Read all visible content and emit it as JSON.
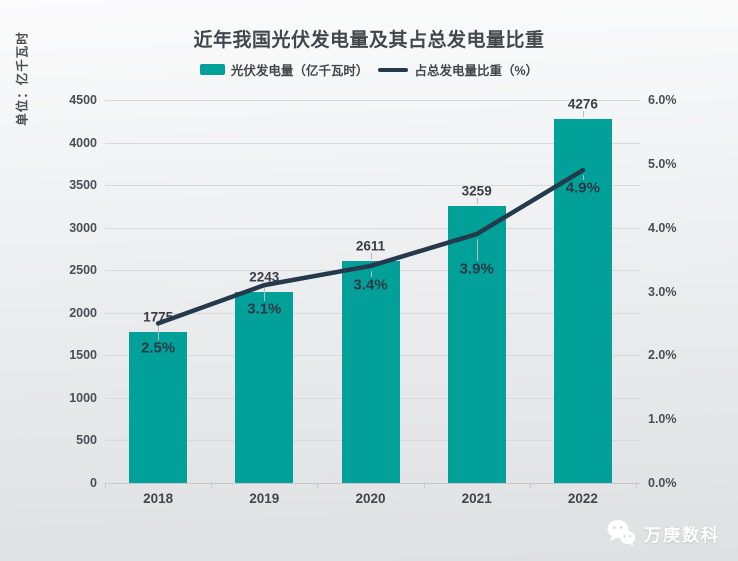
{
  "title": "近年我国光伏发电量及其占总发电量比重",
  "unit_label": "单位：亿千瓦时",
  "legend": {
    "bar": {
      "label": "光伏发电量（亿千瓦时）"
    },
    "line": {
      "label": "占总发电量比重（%）"
    }
  },
  "watermark": {
    "name": "万庚数科",
    "icon": "wechat-icon"
  },
  "colors": {
    "bar": "#01a099",
    "line": "#243a4c",
    "title": "#43474b",
    "axis_tick": "#4a4f54",
    "bar_value_label": "#3a3f45",
    "pct_label": "#2c3945",
    "gridline": "#d8d9db",
    "watermark_text": "#ffffff"
  },
  "chart_data": {
    "type": "bar",
    "subtype": "bar+line dual-axis combo",
    "title": "近年我国光伏发电量及其占总发电量比重",
    "categories": [
      "2018",
      "2019",
      "2020",
      "2021",
      "2022"
    ],
    "series": [
      {
        "name": "光伏发电量（亿千瓦时）",
        "type": "bar",
        "axis": "left",
        "values": [
          1775,
          2243,
          2611,
          3259,
          4276
        ],
        "labels": [
          "1775",
          "2243",
          "2611",
          "3259",
          "4276"
        ],
        "color": "#01a099"
      },
      {
        "name": "占总发电量比重（%）",
        "type": "line",
        "axis": "right",
        "values": [
          2.5,
          3.1,
          3.4,
          3.9,
          4.9
        ],
        "labels": [
          "2.5%",
          "3.1%",
          "3.4%",
          "3.9%",
          "4.9%"
        ],
        "color": "#243a4c"
      }
    ],
    "left_axis": {
      "label": "单位：亿千瓦时",
      "min": 0,
      "max": 4500,
      "step": 500,
      "ticks": [
        "0",
        "500",
        "1000",
        "1500",
        "2000",
        "2500",
        "3000",
        "3500",
        "4000",
        "4500"
      ]
    },
    "right_axis": {
      "min": 0,
      "max": 6,
      "step": 1,
      "ticks": [
        "0.0%",
        "1.0%",
        "2.0%",
        "3.0%",
        "4.0%",
        "5.0%",
        "6.0%"
      ]
    },
    "grid": "horizontal gridlines at left-axis steps",
    "legend_position": "top-center"
  }
}
